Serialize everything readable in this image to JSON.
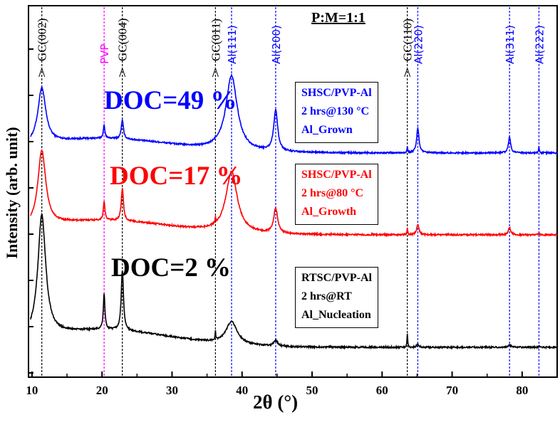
{
  "chart_data": {
    "type": "line",
    "title": "",
    "xlabel": "2θ (°)",
    "ylabel": "Intensity (arb. unit)",
    "xlim": [
      9.5,
      85
    ],
    "x_ticks": [
      10,
      20,
      30,
      40,
      50,
      60,
      70,
      80
    ],
    "ratio_label": "P:M=1:1",
    "reference_lines": [
      {
        "name": "GC(002)",
        "x": 11.4,
        "color": "#000000"
      },
      {
        "name": "PVP",
        "x": 20.3,
        "color": "#ff00ff"
      },
      {
        "name": "GC(004)",
        "x": 22.9,
        "color": "#000000"
      },
      {
        "name": "GC(011)",
        "x": 36.2,
        "color": "#000000"
      },
      {
        "name": "Al(111)",
        "x": 38.5,
        "color": "#0000ff"
      },
      {
        "name": "Al(200)",
        "x": 44.8,
        "color": "#0000ff"
      },
      {
        "name": "GC(110)",
        "x": 63.6,
        "color": "#000000"
      },
      {
        "name": "Al(220)",
        "x": 65.1,
        "color": "#0000ff"
      },
      {
        "name": "Al(311)",
        "x": 78.2,
        "color": "#0000ff"
      },
      {
        "name": "Al(222)",
        "x": 82.4,
        "color": "#0000ff"
      }
    ],
    "series": [
      {
        "color": "#0000ff",
        "doc_label": "DOC=49 %",
        "legend": [
          "SHSC/PVP-Al",
          "2 hrs@130 °C",
          "Al_Grown"
        ],
        "baseline": 215,
        "peaks": [
          [
            11.4,
            0.68,
            78
          ],
          [
            20.3,
            0.14,
            18
          ],
          [
            22.9,
            0.19,
            26
          ],
          [
            36.2,
            0.05,
            3
          ],
          [
            38.5,
            0.98,
            105
          ],
          [
            44.8,
            0.34,
            58
          ],
          [
            63.6,
            0.06,
            8
          ],
          [
            65.1,
            0.2,
            35
          ],
          [
            78.2,
            0.2,
            22
          ],
          [
            82.4,
            0.06,
            9
          ]
        ]
      },
      {
        "color": "#ff0000",
        "doc_label": "DOC=17 %",
        "legend": [
          "SHSC/PVP-Al",
          "2 hrs@80 °C",
          "Al_Growth"
        ],
        "baseline": 330,
        "peaks": [
          [
            11.4,
            0.68,
            105
          ],
          [
            20.3,
            0.14,
            26
          ],
          [
            22.9,
            0.19,
            45
          ],
          [
            36.2,
            0.05,
            8
          ],
          [
            38.5,
            0.98,
            85
          ],
          [
            44.8,
            0.34,
            35
          ],
          [
            63.6,
            0.06,
            10
          ],
          [
            65.1,
            0.2,
            15
          ],
          [
            78.2,
            0.2,
            10
          ],
          [
            82.4,
            0.06,
            3
          ]
        ]
      },
      {
        "color": "#000000",
        "doc_label": "DOC=2 %",
        "legend": [
          "RTSC/PVP-Al",
          "2 hrs@RT",
          "Al_Nucleation"
        ],
        "baseline": 488,
        "peaks": [
          [
            11.4,
            0.68,
            170
          ],
          [
            20.3,
            0.14,
            50
          ],
          [
            22.9,
            0.19,
            85
          ],
          [
            36.2,
            0.05,
            12
          ],
          [
            38.5,
            0.98,
            32
          ],
          [
            44.8,
            0.34,
            8
          ],
          [
            63.6,
            0.06,
            20
          ],
          [
            65.1,
            0.2,
            4
          ],
          [
            78.2,
            0.2,
            4
          ],
          [
            82.4,
            0.06,
            2
          ]
        ]
      }
    ]
  }
}
